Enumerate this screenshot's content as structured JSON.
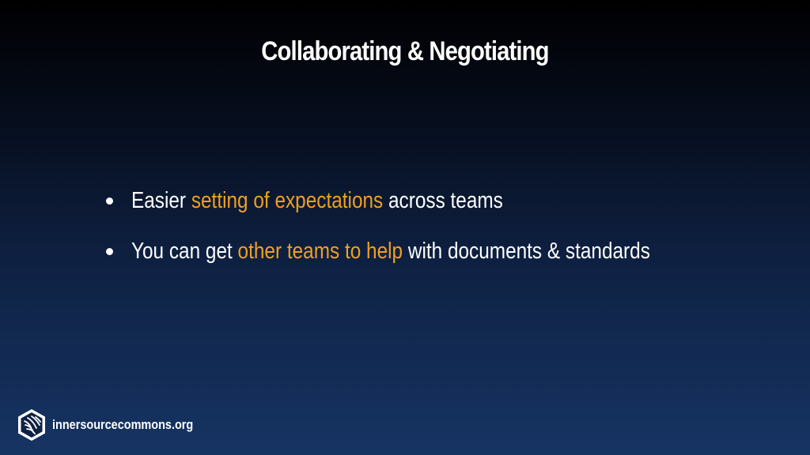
{
  "slide": {
    "title": "Collaborating & Negotiating",
    "bullets": [
      {
        "before": "Easier ",
        "highlight": "setting of expectations",
        "after": " across teams"
      },
      {
        "before": "You can get ",
        "highlight": "other teams to help",
        "after": " with documents & standards"
      }
    ]
  },
  "footer": {
    "logo_icon": "innersource-hexagon-icon",
    "text": "innersourcecommons.org"
  },
  "colors": {
    "highlight": "#f0a020",
    "text": "#ffffff",
    "background_top": "#000000",
    "background_bottom": "#163463"
  }
}
